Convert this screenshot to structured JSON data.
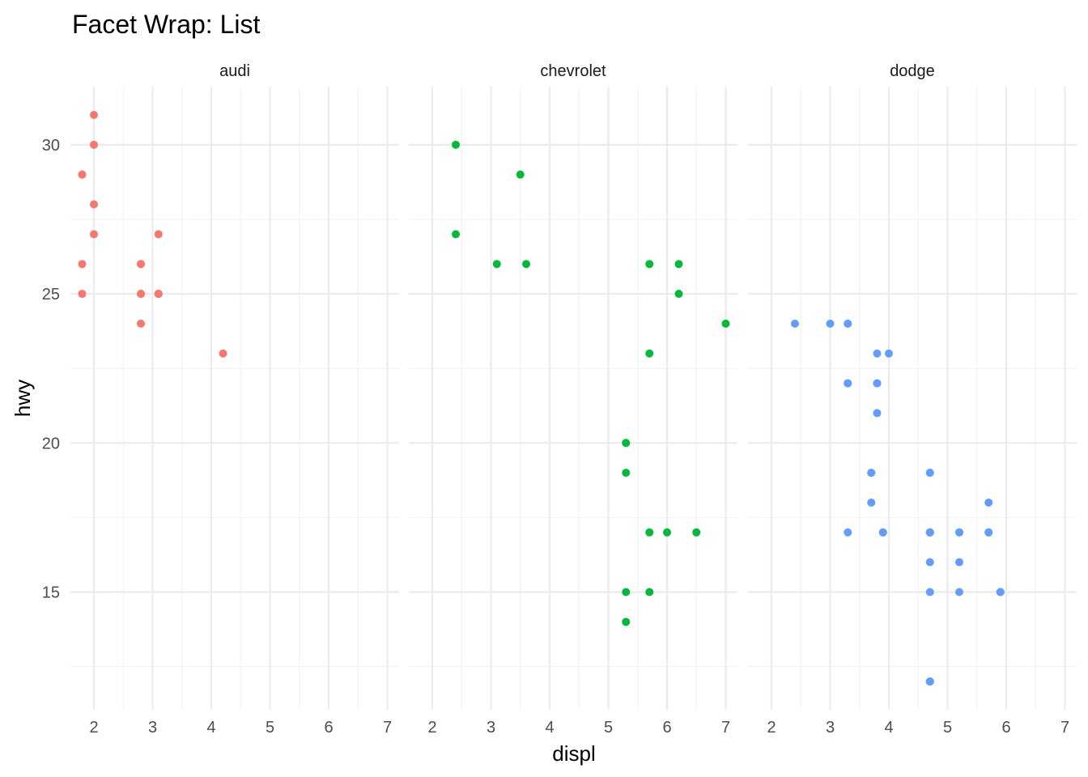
{
  "chart_data": {
    "type": "scatter",
    "title": "Facet Wrap: List",
    "xlabel": "displ",
    "ylabel": "hwy",
    "xlim": [
      1.6,
      7.2
    ],
    "ylim": [
      11.05,
      31.95
    ],
    "x_ticks": [
      2,
      3,
      4,
      5,
      6,
      7
    ],
    "y_ticks": [
      15,
      20,
      25,
      30
    ],
    "grid": true,
    "legend": "none",
    "panels": [
      {
        "strip": "audi",
        "color": "#F8766D",
        "points": [
          {
            "x": 1.8,
            "y": 29
          },
          {
            "x": 1.8,
            "y": 29
          },
          {
            "x": 2.0,
            "y": 31
          },
          {
            "x": 2.0,
            "y": 30
          },
          {
            "x": 2.8,
            "y": 26
          },
          {
            "x": 2.8,
            "y": 26
          },
          {
            "x": 3.1,
            "y": 27
          },
          {
            "x": 1.8,
            "y": 26
          },
          {
            "x": 1.8,
            "y": 25
          },
          {
            "x": 2.0,
            "y": 28
          },
          {
            "x": 2.0,
            "y": 27
          },
          {
            "x": 2.8,
            "y": 25
          },
          {
            "x": 2.8,
            "y": 25
          },
          {
            "x": 3.1,
            "y": 25
          },
          {
            "x": 3.1,
            "y": 25
          },
          {
            "x": 2.8,
            "y": 24
          },
          {
            "x": 3.1,
            "y": 25
          },
          {
            "x": 4.2,
            "y": 23
          }
        ]
      },
      {
        "strip": "chevrolet",
        "color": "#00BA38",
        "points": [
          {
            "x": 5.3,
            "y": 20
          },
          {
            "x": 5.3,
            "y": 15
          },
          {
            "x": 5.3,
            "y": 20
          },
          {
            "x": 5.7,
            "y": 17
          },
          {
            "x": 6.0,
            "y": 17
          },
          {
            "x": 5.7,
            "y": 26
          },
          {
            "x": 5.7,
            "y": 23
          },
          {
            "x": 6.2,
            "y": 26
          },
          {
            "x": 6.2,
            "y": 25
          },
          {
            "x": 7.0,
            "y": 24
          },
          {
            "x": 5.3,
            "y": 19
          },
          {
            "x": 5.3,
            "y": 14
          },
          {
            "x": 5.7,
            "y": 15
          },
          {
            "x": 6.5,
            "y": 17
          },
          {
            "x": 2.4,
            "y": 27
          },
          {
            "x": 2.4,
            "y": 30
          },
          {
            "x": 3.1,
            "y": 26
          },
          {
            "x": 3.5,
            "y": 29
          },
          {
            "x": 3.6,
            "y": 26
          }
        ]
      },
      {
        "strip": "dodge",
        "color": "#619CFF",
        "points": [
          {
            "x": 2.4,
            "y": 24
          },
          {
            "x": 3.0,
            "y": 24
          },
          {
            "x": 3.3,
            "y": 22
          },
          {
            "x": 3.3,
            "y": 22
          },
          {
            "x": 3.3,
            "y": 24
          },
          {
            "x": 3.3,
            "y": 24
          },
          {
            "x": 3.3,
            "y": 17
          },
          {
            "x": 3.8,
            "y": 22
          },
          {
            "x": 3.8,
            "y": 21
          },
          {
            "x": 3.8,
            "y": 23
          },
          {
            "x": 4.0,
            "y": 23
          },
          {
            "x": 3.7,
            "y": 19
          },
          {
            "x": 3.7,
            "y": 18
          },
          {
            "x": 3.9,
            "y": 17
          },
          {
            "x": 3.9,
            "y": 17
          },
          {
            "x": 4.7,
            "y": 19
          },
          {
            "x": 4.7,
            "y": 19
          },
          {
            "x": 4.7,
            "y": 12
          },
          {
            "x": 5.2,
            "y": 17
          },
          {
            "x": 5.2,
            "y": 15
          },
          {
            "x": 5.7,
            "y": 17
          },
          {
            "x": 5.9,
            "y": 15
          },
          {
            "x": 4.7,
            "y": 17
          },
          {
            "x": 4.7,
            "y": 12
          },
          {
            "x": 4.7,
            "y": 17
          },
          {
            "x": 4.7,
            "y": 16
          },
          {
            "x": 4.7,
            "y": 12
          },
          {
            "x": 4.7,
            "y": 15
          },
          {
            "x": 5.2,
            "y": 16
          },
          {
            "x": 5.7,
            "y": 18
          },
          {
            "x": 5.9,
            "y": 15
          },
          {
            "x": 4.7,
            "y": 17
          },
          {
            "x": 4.7,
            "y": 17
          },
          {
            "x": 5.2,
            "y": 17
          },
          {
            "x": 5.7,
            "y": 17
          },
          {
            "x": 3.8,
            "y": 22
          },
          {
            "x": 3.7,
            "y": 19
          }
        ]
      }
    ]
  }
}
